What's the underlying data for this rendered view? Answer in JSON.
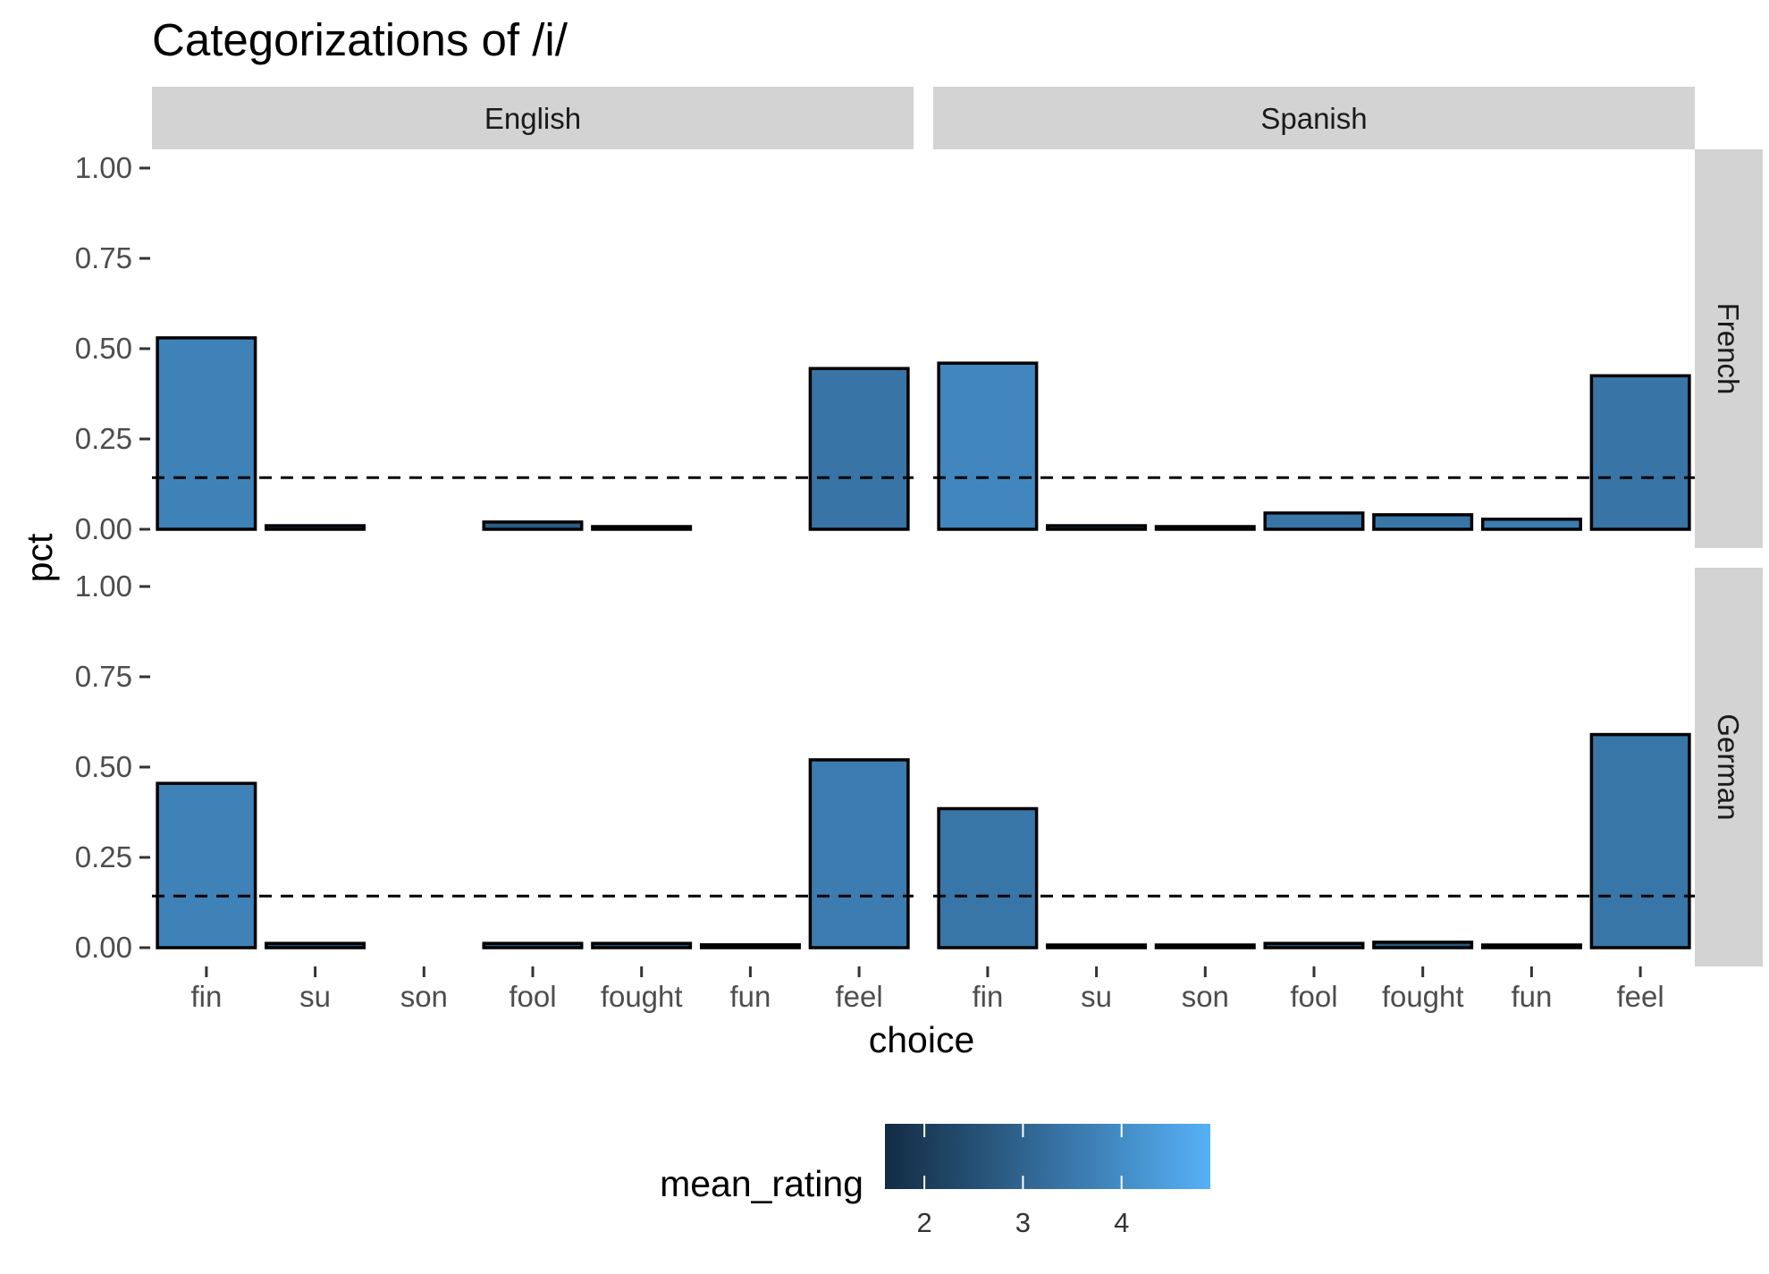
{
  "chart_data": {
    "type": "bar",
    "title": "Categorizations of /i/",
    "xlabel": "choice",
    "ylabel": "pct",
    "ylim": [
      0,
      1
    ],
    "yticks": [
      "0.00",
      "0.25",
      "0.50",
      "0.75",
      "1.00"
    ],
    "categories": [
      "fin",
      "su",
      "son",
      "fool",
      "fought",
      "fun",
      "feel"
    ],
    "facet_columns": [
      "English",
      "Spanish"
    ],
    "facet_rows": [
      "French",
      "German"
    ],
    "reference_line": 0.1429,
    "panels": [
      {
        "row": "French",
        "col": "English",
        "values": [
          0.53,
          0.01,
          null,
          0.02,
          0.007,
          null,
          0.445
        ],
        "mean_rating": [
          3.75,
          2.4,
          null,
          2.8,
          2.9,
          null,
          3.4
        ]
      },
      {
        "row": "French",
        "col": "Spanish",
        "values": [
          0.46,
          0.01,
          0.005,
          0.045,
          0.04,
          0.028,
          0.425
        ],
        "mean_rating": [
          3.85,
          2.6,
          2.2,
          3.4,
          3.45,
          3.6,
          3.4
        ]
      },
      {
        "row": "German",
        "col": "English",
        "values": [
          0.455,
          0.012,
          null,
          0.012,
          0.012,
          0.008,
          0.52
        ],
        "mean_rating": [
          3.75,
          2.5,
          null,
          2.6,
          2.6,
          2.4,
          3.6
        ]
      },
      {
        "row": "German",
        "col": "Spanish",
        "values": [
          0.385,
          0.007,
          0.005,
          0.012,
          0.015,
          0.005,
          0.59
        ],
        "mean_rating": [
          3.45,
          2.4,
          2.3,
          2.6,
          2.7,
          2.3,
          3.45
        ]
      }
    ],
    "legend": {
      "title": "mean_rating",
      "ticks": [
        "2",
        "3",
        "4"
      ],
      "range": [
        1.6,
        4.9
      ],
      "color_low": "#132B43",
      "color_high": "#56B1F7",
      "placement": "bottom"
    }
  }
}
